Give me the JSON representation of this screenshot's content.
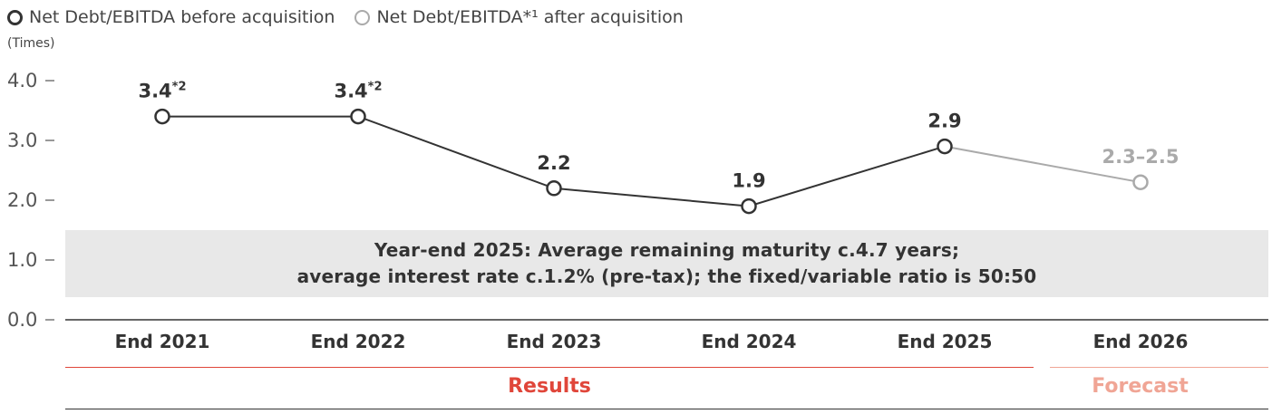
{
  "legend": [
    {
      "label": "Net Debt/EBITDA before acquisition",
      "color": "#333333"
    },
    {
      "label": "Net Debt/EBITDA*¹ after acquisition",
      "color": "#aaaaaa"
    }
  ],
  "unit_label": "(Times)",
  "note": {
    "line1": "Year-end 2025: Average remaining maturity c.4.7 years;",
    "line2": "average interest rate c.1.2% (pre-tax); the fixed/variable ratio is 50:50"
  },
  "sections": [
    {
      "label": "Results",
      "color": "#e0463a"
    },
    {
      "label": "Forecast",
      "color": "#f0a595"
    }
  ],
  "chart_data": {
    "type": "line",
    "categories": [
      "End 2021",
      "End 2022",
      "End 2023",
      "End 2024",
      "End 2025",
      "End 2026"
    ],
    "ylim": [
      0,
      4
    ],
    "yticks": [
      "0.0",
      "1.0",
      "2.0",
      "3.0",
      "4.0"
    ],
    "series": [
      {
        "name": "Net Debt/EBITDA before acquisition",
        "color": "#333333",
        "values": [
          3.4,
          3.4,
          2.2,
          1.9,
          2.9,
          null
        ],
        "labels": [
          "3.4",
          "3.4",
          "2.2",
          "1.9",
          "2.9",
          null
        ],
        "footnotes": [
          "*2",
          "*2",
          null,
          null,
          null,
          null
        ]
      },
      {
        "name": "Net Debt/EBITDA*¹ after acquisition",
        "color": "#aaaaaa",
        "values": [
          null,
          null,
          null,
          null,
          2.9,
          2.3
        ],
        "labels": [
          null,
          null,
          null,
          null,
          null,
          "2.3–2.5"
        ],
        "footnotes": [
          null,
          null,
          null,
          null,
          null,
          null
        ]
      }
    ]
  }
}
